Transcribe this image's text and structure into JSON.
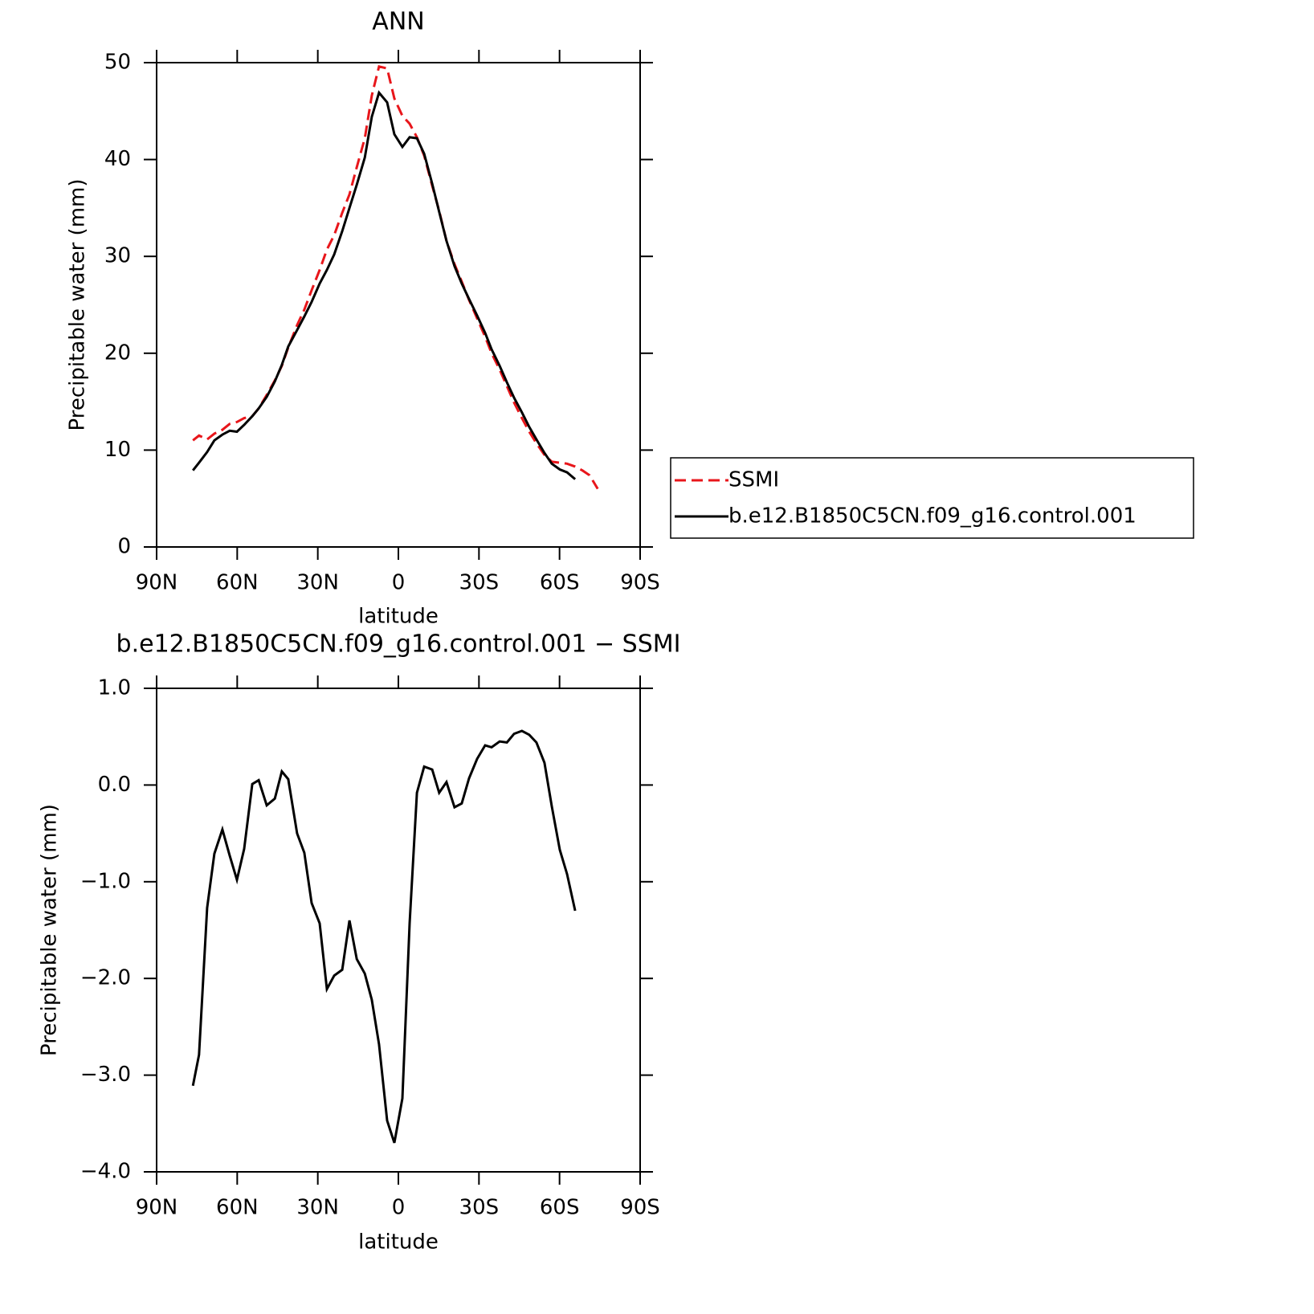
{
  "chart_data": [
    {
      "type": "line",
      "title": "ANN",
      "xlabel": "latitude",
      "ylabel": "Precipitable water (mm)",
      "xlim": [
        90,
        -90
      ],
      "ylim": [
        0,
        50
      ],
      "xticks": [
        {
          "value": 90,
          "label": "90N"
        },
        {
          "value": 60,
          "label": "60N"
        },
        {
          "value": 30,
          "label": "30N"
        },
        0,
        {
          "value": -30,
          "label": "30S"
        },
        {
          "value": -60,
          "label": "60S"
        },
        {
          "value": -90,
          "label": "90S"
        }
      ],
      "yticks": [
        0,
        10,
        20,
        30,
        40,
        50
      ],
      "series": [
        {
          "name": "SSMI",
          "color": "#e8161b",
          "dashed": true,
          "x": [
            76.5,
            74.2,
            71.2,
            68.5,
            65.5,
            62.8,
            60.1,
            57.4,
            54.4,
            52.0,
            49.0,
            46.0,
            43.4,
            41.0,
            37.7,
            35.0,
            32.3,
            29.3,
            26.6,
            23.9,
            20.9,
            18.2,
            15.5,
            12.5,
            9.9,
            7.2,
            4.2,
            1.5,
            -1.5,
            -4.2,
            -6.9,
            -9.6,
            -12.6,
            -15.2,
            -17.9,
            -20.9,
            -23.6,
            -26.3,
            -29.3,
            -32.3,
            -34.7,
            -37.7,
            -40.4,
            -43.1,
            -46.0,
            -48.7,
            -51.4,
            -54.4,
            -57.1,
            -60.1,
            -62.8,
            -65.8,
            -68.5,
            -71.2,
            -74.2
          ],
          "values": [
            11.0,
            11.5,
            11.1,
            11.7,
            12.1,
            12.7,
            12.9,
            13.3,
            13.5,
            14.3,
            15.7,
            17.2,
            18.7,
            20.6,
            22.9,
            24.5,
            26.5,
            28.6,
            30.7,
            32.2,
            34.5,
            36.4,
            39.2,
            42.2,
            46.6,
            49.6,
            49.4,
            46.3,
            44.5,
            43.7,
            42.3,
            40.4,
            37.3,
            34.7,
            31.6,
            29.2,
            27.4,
            25.5,
            23.6,
            21.7,
            20.0,
            18.3,
            16.6,
            14.9,
            13.3,
            11.9,
            10.7,
            9.5,
            8.8,
            8.7,
            8.6,
            8.3,
            7.9,
            7.4,
            6.0
          ]
        },
        {
          "name": "b.e12.B1850C5CN.f09_g16.control.001",
          "color": "#000000",
          "dashed": false,
          "x": [
            76.5,
            74.2,
            71.2,
            68.5,
            65.5,
            62.8,
            60.1,
            57.4,
            54.4,
            52.0,
            49.0,
            46.0,
            43.4,
            41.0,
            37.7,
            35.0,
            32.3,
            29.3,
            26.6,
            23.9,
            20.9,
            18.2,
            15.5,
            12.5,
            9.9,
            7.2,
            4.2,
            1.5,
            -1.5,
            -4.2,
            -6.9,
            -9.6,
            -12.6,
            -15.2,
            -17.9,
            -20.9,
            -23.6,
            -26.3,
            -29.3,
            -32.3,
            -34.7,
            -37.7,
            -40.4,
            -43.1,
            -46.0,
            -48.7,
            -51.4,
            -54.4,
            -57.1,
            -60.1,
            -62.8,
            -65.8
          ],
          "values": [
            7.9,
            8.7,
            9.8,
            11.0,
            11.6,
            12.0,
            11.9,
            12.6,
            13.5,
            14.3,
            15.5,
            17.1,
            18.8,
            20.7,
            22.4,
            23.8,
            25.3,
            27.2,
            28.6,
            30.2,
            32.6,
            35.0,
            37.4,
            40.2,
            44.4,
            46.9,
            45.9,
            42.6,
            41.3,
            42.3,
            42.2,
            40.6,
            37.5,
            34.6,
            31.6,
            29.0,
            27.2,
            25.6,
            23.9,
            22.1,
            20.4,
            18.7,
            17.0,
            15.4,
            13.9,
            12.4,
            11.1,
            9.7,
            8.6,
            8.0,
            7.7,
            7.0
          ]
        }
      ]
    },
    {
      "type": "line",
      "title": "b.e12.B1850C5CN.f09_g16.control.001 − SSMI",
      "xlabel": "latitude",
      "ylabel": "Precipitable water (mm)",
      "xlim": [
        90,
        -90
      ],
      "ylim": [
        -4,
        1
      ],
      "xticks": [
        {
          "value": 90,
          "label": "90N"
        },
        {
          "value": 60,
          "label": "60N"
        },
        {
          "value": 30,
          "label": "30N"
        },
        0,
        {
          "value": -30,
          "label": "30S"
        },
        {
          "value": -60,
          "label": "60S"
        },
        {
          "value": -90,
          "label": "90S"
        }
      ],
      "yticks": [
        {
          "value": -4,
          "label": "−4.0"
        },
        {
          "value": -3,
          "label": "−3.0"
        },
        {
          "value": -2,
          "label": "−2.0"
        },
        {
          "value": -1,
          "label": "−1.0"
        },
        {
          "value": 0,
          "label": "0.0"
        },
        {
          "value": 1,
          "label": "1.0"
        }
      ],
      "series": [
        {
          "color": "#000000",
          "dashed": false,
          "x": [
            76.5,
            74.2,
            71.2,
            68.5,
            65.5,
            62.8,
            60.1,
            57.4,
            54.4,
            52.0,
            49.0,
            46.0,
            43.4,
            41.0,
            37.7,
            35.0,
            32.3,
            29.3,
            26.6,
            23.9,
            20.9,
            18.2,
            15.5,
            12.5,
            9.9,
            7.2,
            4.2,
            1.5,
            -1.5,
            -4.2,
            -6.9,
            -9.6,
            -12.6,
            -15.2,
            -17.9,
            -20.9,
            -23.6,
            -26.3,
            -29.3,
            -32.3,
            -34.7,
            -37.7,
            -40.4,
            -43.1,
            -46.0,
            -48.7,
            -51.4,
            -54.4,
            -57.1,
            -60.1,
            -62.8,
            -65.8
          ],
          "values": [
            -3.11,
            -2.79,
            -1.27,
            -0.71,
            -0.46,
            -0.73,
            -0.98,
            -0.66,
            0.01,
            0.05,
            -0.21,
            -0.14,
            0.14,
            0.06,
            -0.5,
            -0.7,
            -1.22,
            -1.43,
            -2.11,
            -1.97,
            -1.91,
            -1.4,
            -1.8,
            -1.95,
            -2.22,
            -2.68,
            -3.47,
            -3.7,
            -3.24,
            -1.43,
            -0.08,
            0.19,
            0.16,
            -0.08,
            0.03,
            -0.23,
            -0.19,
            0.07,
            0.27,
            0.41,
            0.39,
            0.45,
            0.44,
            0.53,
            0.56,
            0.52,
            0.44,
            0.23,
            -0.22,
            -0.67,
            -0.92,
            -1.3
          ]
        }
      ]
    }
  ]
}
